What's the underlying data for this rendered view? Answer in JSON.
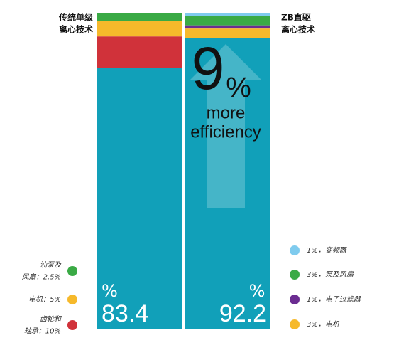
{
  "chart_data": {
    "type": "stacked-column",
    "ylim": [
      0,
      100
    ],
    "columns": [
      {
        "title_lines": [
          "传统单级",
          "离心技术"
        ],
        "unit": "%",
        "efficiency": 83.4,
        "efficiency_color": "#11a0b9",
        "segments": [
          {
            "label_lines": [
              "油泵及",
              "风扇：2.5%"
            ],
            "value": 2.5,
            "color": "#3aaa45"
          },
          {
            "label_lines": [
              "电机：5%"
            ],
            "value": 5,
            "color": "#f6b92b"
          },
          {
            "label_lines": [
              "齿轮和",
              "轴承：10%"
            ],
            "value": 10,
            "color": "#d0323a"
          }
        ]
      },
      {
        "title_lines": [
          "ZB直驱",
          "离心技术"
        ],
        "unit": "%",
        "efficiency": 92.2,
        "efficiency_color": "#11a0b9",
        "segments": [
          {
            "label_lines": [
              "1%，变频器"
            ],
            "value": 1,
            "color": "#7fcbee"
          },
          {
            "label_lines": [
              "3%，泵及风扇"
            ],
            "value": 3,
            "color": "#3aaa45"
          },
          {
            "label_lines": [
              "1%，电子过滤器"
            ],
            "value": 1,
            "color": "#6b2c91"
          },
          {
            "label_lines": [
              "3%，电机"
            ],
            "value": 3,
            "color": "#f6b92b"
          }
        ]
      }
    ],
    "annotation": {
      "value": 9,
      "unit": "%",
      "text_lines": [
        "more",
        "efficiency"
      ]
    }
  }
}
